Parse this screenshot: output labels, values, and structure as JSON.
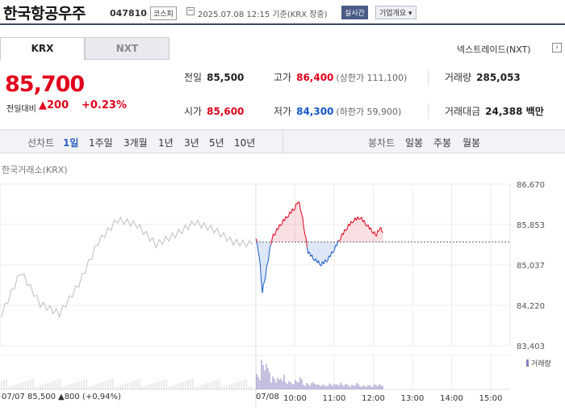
{
  "header": {
    "name": "한국항공우주",
    "code": "047810",
    "market": "코스피",
    "timestamp": "2025.07.08 12:15 기준(KRX 장중)",
    "realtime_label": "실시간",
    "company_label": "기업개요 ▾"
  },
  "tabs": [
    {
      "label": "KRX"
    },
    {
      "label": "NXT"
    }
  ],
  "nxt_link": "넥스트레이드(NXT)",
  "nxt_arrow": "›",
  "price": {
    "current": "85,700",
    "change_label": "전일대비",
    "change_amount": "▲200",
    "change_pct": "+0.23%"
  },
  "stats": {
    "prev_label": "전일",
    "prev_value": "85,500",
    "high_label": "고가",
    "high_value": "86,400",
    "high_sub": "(상한가 111,100)",
    "volume_label": "거래량",
    "volume_value": "285,053",
    "open_label": "시가",
    "open_value": "85,600",
    "low_label": "저가",
    "low_value": "84,300",
    "low_sub": "(하한가 59,900)",
    "amount_label": "거래대금",
    "amount_value": "24,388 백만"
  },
  "toolbar": {
    "line_label": "선차트",
    "periods": [
      "1일",
      "1주일",
      "3개월",
      "1년",
      "3년",
      "5년",
      "10년"
    ],
    "candle_label": "봉차트",
    "candles": [
      "일봉",
      "주봉",
      "월봉"
    ]
  },
  "chart_source": "한국거래소(KRX)",
  "volume_legend": "거래량",
  "footer": {
    "prev_date": "07/07",
    "prev_price": "85,500",
    "prev_change": "▲800 (+0,94%)",
    "today_date": "07/08"
  },
  "colors": {
    "up": "#e0001c",
    "down": "#1556c9",
    "prev_line": "#bdbdbd",
    "volume": "#8b7fc0"
  },
  "chart_data": {
    "type": "line",
    "y_ticks": [
      "86,670",
      "85,853",
      "85,037",
      "84,220",
      "83,403"
    ],
    "ylim": [
      83403,
      86670
    ],
    "x_labels": [
      "10:00",
      "11:00",
      "12:00",
      "13:00",
      "14:00",
      "15:00"
    ],
    "reference_price": 85500,
    "series": [
      {
        "x": [
          "07/07 09:00",
          "07/07 09:30",
          "07/07 10:00",
          "07/07 10:30",
          "07/07 11:00",
          "07/07 11:30",
          "07/07 12:00",
          "07/07 12:30",
          "07/07 13:00",
          "07/07 13:30",
          "07/07 14:00",
          "07/07 14:30",
          "07/07 15:00",
          "07/07 15:30"
        ],
        "values": [
          84050,
          84900,
          84250,
          84050,
          84650,
          85500,
          85950,
          85850,
          85450,
          85650,
          85900,
          85750,
          85500,
          85450
        ]
      },
      {
        "x": [
          "09:00",
          "09:05",
          "09:10",
          "09:15",
          "09:20",
          "09:25",
          "09:30",
          "09:40",
          "09:50",
          "10:00",
          "10:05",
          "10:10",
          "10:15",
          "10:20",
          "10:30",
          "10:40",
          "10:50",
          "11:00",
          "11:10",
          "11:20",
          "11:30",
          "11:40",
          "11:50",
          "12:00",
          "12:05",
          "12:10",
          "12:15"
        ],
        "values": [
          85600,
          85250,
          84500,
          84850,
          85250,
          85600,
          85700,
          85900,
          86050,
          86200,
          86350,
          86100,
          85700,
          85300,
          85150,
          85050,
          85150,
          85350,
          85600,
          85800,
          85950,
          86000,
          85850,
          85700,
          85650,
          85800,
          85700
        ]
      }
    ],
    "volume": [
      40,
      70,
      55,
      30,
      25,
      35,
      20,
      18,
      22,
      26,
      15,
      14,
      18,
      12,
      10,
      14,
      12,
      16,
      13,
      12,
      11,
      14,
      10,
      9,
      10,
      12,
      11
    ]
  }
}
